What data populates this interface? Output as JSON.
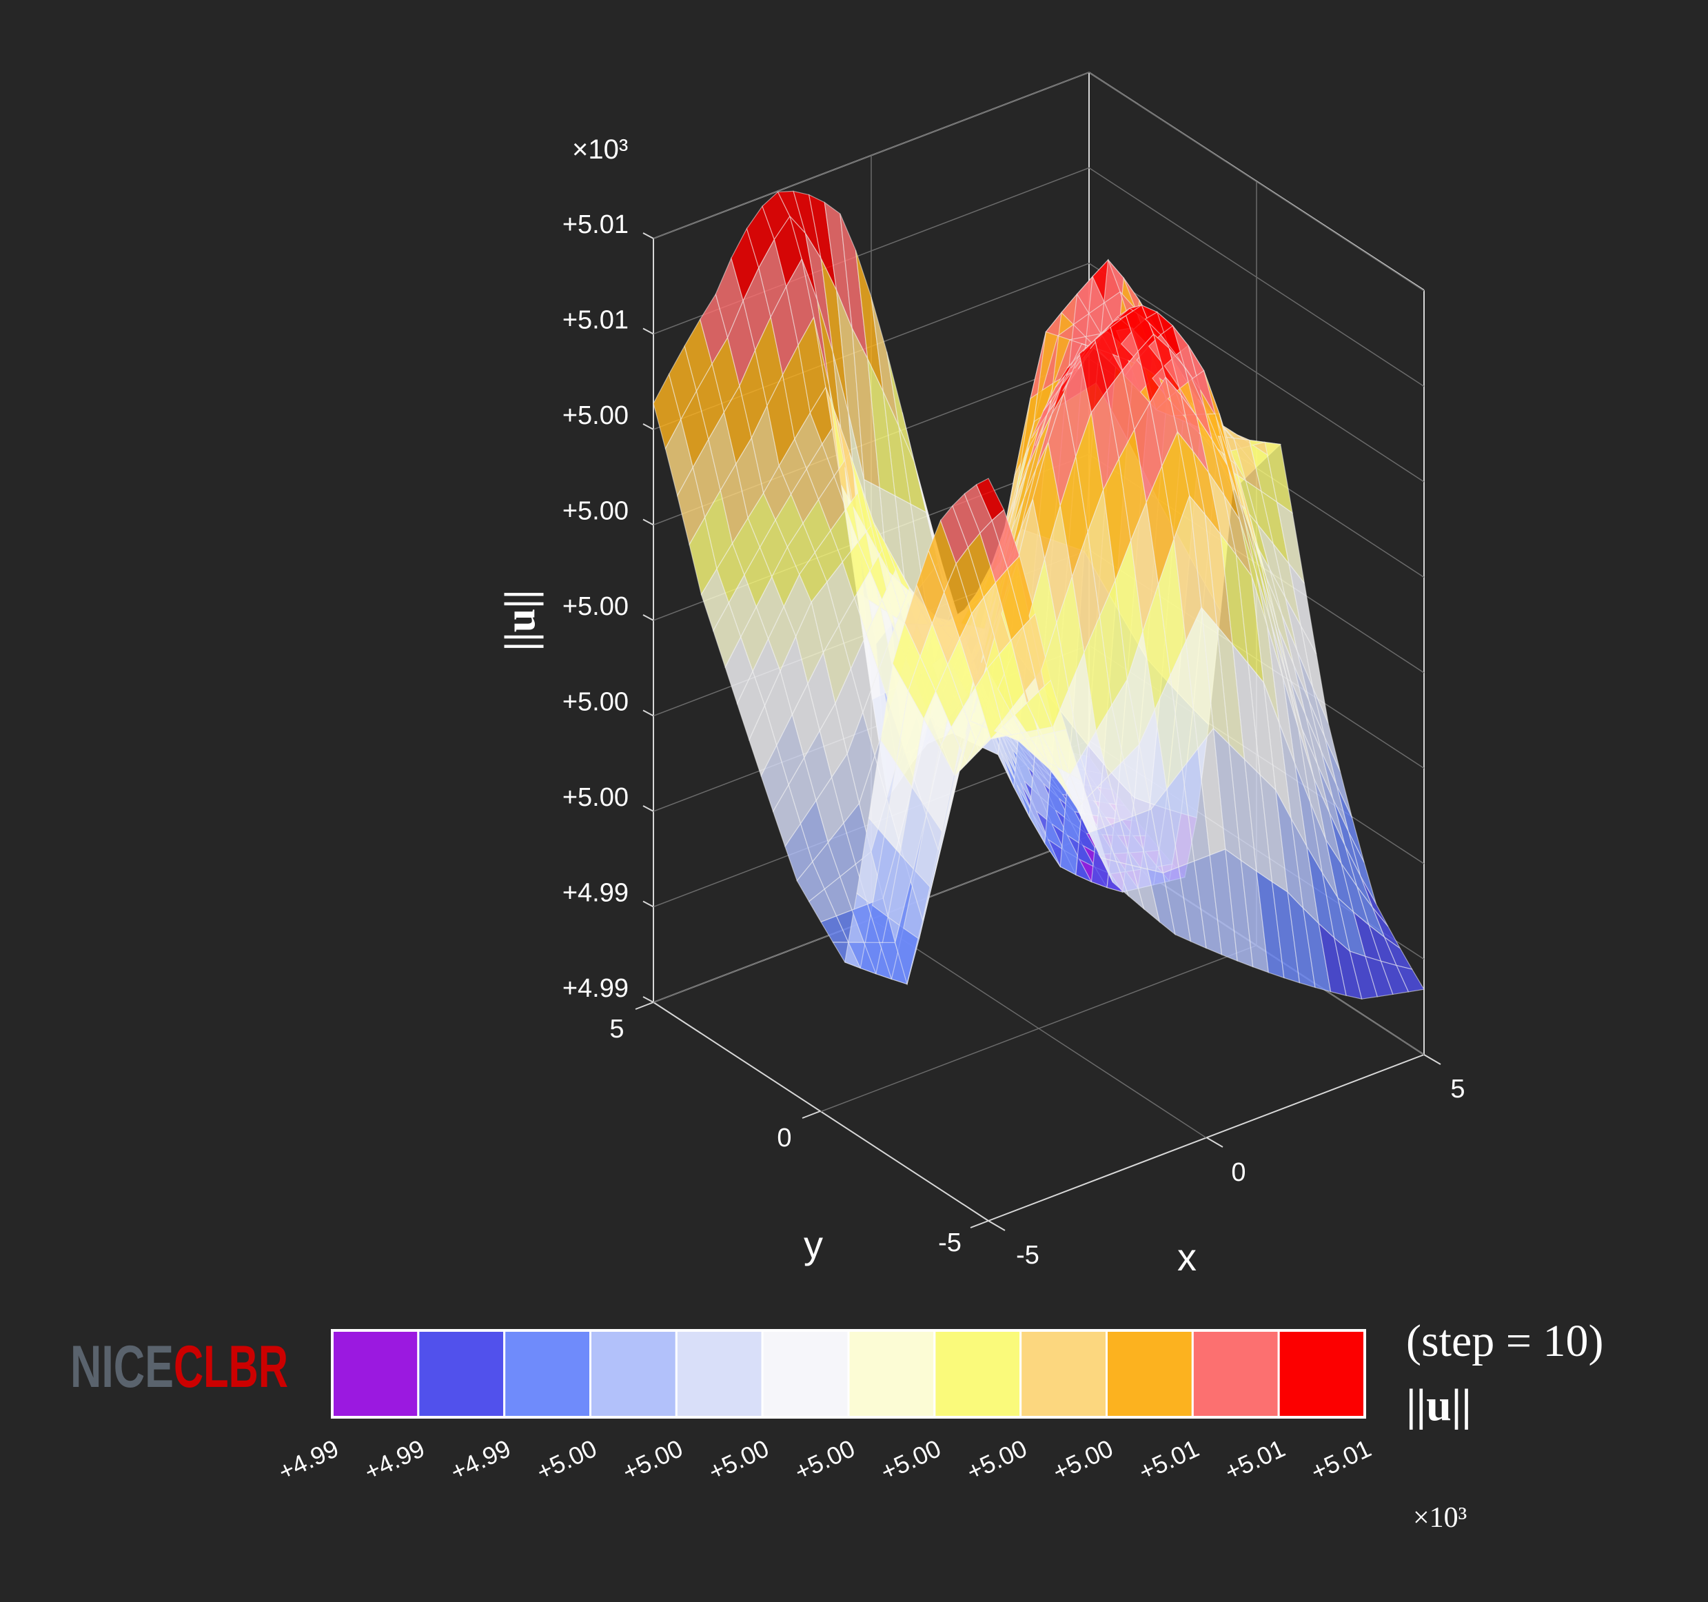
{
  "chart_data": {
    "type": "surface",
    "title": "",
    "xlabel": "x",
    "ylabel": "y",
    "zlabel": "||u||",
    "z_multiplier": "×10³",
    "xlim": [
      -5,
      5
    ],
    "ylim": [
      -5,
      5
    ],
    "x_ticks": [
      "-5",
      "0",
      "5"
    ],
    "y_ticks": [
      "-5",
      "0",
      "5"
    ],
    "z_ticks": [
      "+4.99",
      "+4.99",
      "+5.00",
      "+5.00",
      "+5.00",
      "+5.00",
      "+5.00",
      "+5.01",
      "+5.01"
    ],
    "grid": true,
    "colorbar": {
      "logo_left": "NICE",
      "logo_right": "CLBR",
      "colors": [
        "#9b19e0",
        "#5151ec",
        "#6f8bfb",
        "#b2c1fa",
        "#d9dff9",
        "#f6f6fa",
        "#fcfcd5",
        "#fafa7b",
        "#fcd77f",
        "#fcb21f",
        "#fc7070",
        "#fc0000"
      ],
      "tick_labels": [
        "+4.99",
        "+4.99",
        "+4.99",
        "+5.00",
        "+5.00",
        "+5.00",
        "+5.00",
        "+5.00",
        "+5.00",
        "+5.00",
        "+5.01",
        "+5.01",
        "+5.01"
      ],
      "step_label": "(step = 10)",
      "label": "||u||",
      "multiplier": "×10³"
    },
    "surface_levels": [
      [
        0.9,
        0.62,
        0.42,
        0.35,
        0.3,
        0.25,
        0.2,
        0.18
      ],
      [
        0.78,
        0.55,
        0.48,
        0.55,
        0.7,
        0.6,
        0.4,
        0.25
      ],
      [
        0.6,
        0.48,
        0.65,
        0.88,
        0.95,
        0.78,
        0.55,
        0.4
      ],
      [
        0.3,
        0.25,
        0.5,
        0.72,
        0.8,
        0.7,
        0.65,
        0.62
      ],
      [
        0.35,
        0.4,
        0.55,
        0.5,
        0.78,
        0.85,
        0.7,
        0.55
      ],
      [
        0.45,
        0.55,
        0.6,
        0.4,
        0.35,
        0.2,
        0.12,
        0.1
      ],
      [
        0.55,
        0.62,
        0.7,
        0.3,
        0.45,
        0.3,
        0.2,
        0.15
      ],
      [
        0.7,
        0.8,
        0.98,
        0.85,
        0.6,
        0.35,
        0.25,
        0.2
      ]
    ]
  }
}
